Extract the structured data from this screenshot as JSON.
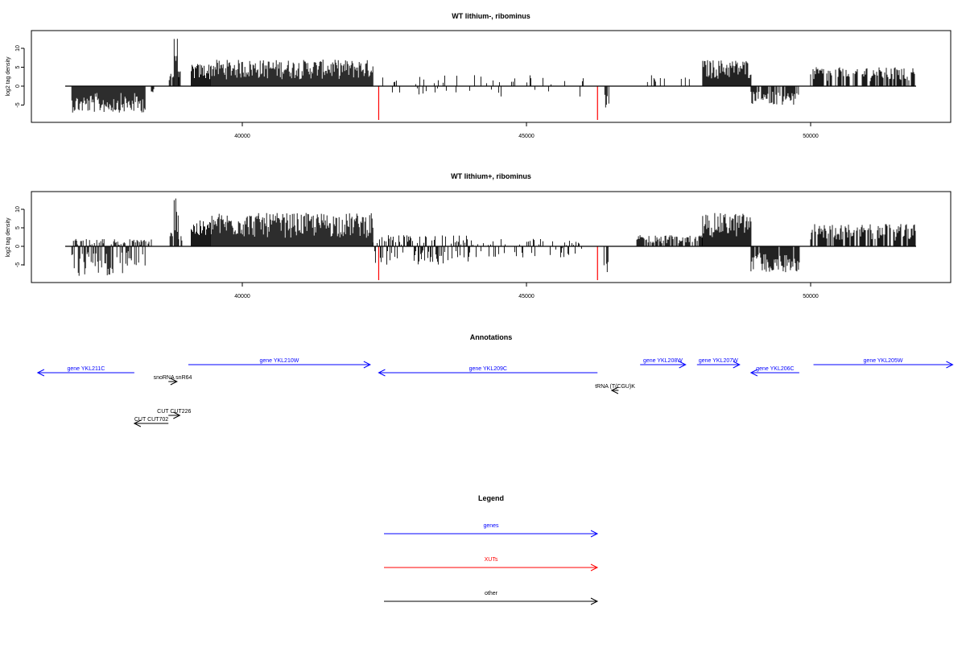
{
  "colors": {
    "gene": "#0000ff",
    "xut": "#ff0000",
    "other": "#000000",
    "bar": "#000000"
  },
  "chart_data": [
    {
      "type": "bar",
      "title": "WT lithium-, ribominus",
      "ylabel": "log2 tag density",
      "xlim": [
        36000,
        52500
      ],
      "ylim": [
        -9.5,
        14.5
      ],
      "xticks": [
        "40000",
        "45000",
        "50000"
      ],
      "yticks": [
        "10",
        "5",
        "0",
        "-5"
      ],
      "red_marks": [
        42400,
        46250
      ],
      "regions": [
        {
          "start": 37000,
          "end": 38300,
          "min": -7,
          "max": 0,
          "density": 1.0
        },
        {
          "start": 38400,
          "end": 38450,
          "min": -2,
          "max": 0,
          "density": 1.0
        },
        {
          "start": 38700,
          "end": 38800,
          "min": 0,
          "max": 4,
          "density": 0.6
        },
        {
          "start": 38800,
          "end": 38880,
          "min": 0,
          "max": 13,
          "density": 1.0
        },
        {
          "start": 38880,
          "end": 38950,
          "min": 0,
          "max": 4,
          "density": 0.5
        },
        {
          "start": 39100,
          "end": 39450,
          "min": 0,
          "max": 6,
          "density": 1.0
        },
        {
          "start": 39450,
          "end": 42300,
          "min": 0,
          "max": 7,
          "density": 1.0
        },
        {
          "start": 42400,
          "end": 46000,
          "min": -3,
          "max": 3,
          "density": 0.15
        },
        {
          "start": 46350,
          "end": 46450,
          "min": -6,
          "max": 0,
          "density": 0.8
        },
        {
          "start": 47100,
          "end": 48100,
          "min": 0,
          "max": 3,
          "density": 0.15
        },
        {
          "start": 48100,
          "end": 48950,
          "min": 0,
          "max": 7,
          "density": 1.0
        },
        {
          "start": 48950,
          "end": 49800,
          "min": -5,
          "max": 0,
          "density": 0.8
        },
        {
          "start": 50000,
          "end": 51850,
          "min": 0,
          "max": 5,
          "density": 0.7
        }
      ]
    },
    {
      "type": "bar",
      "title": "WT lithium+, ribominus",
      "ylabel": "log2 tag density",
      "xlim": [
        36000,
        52500
      ],
      "ylim": [
        -9.5,
        14.5
      ],
      "xticks": [
        "40000",
        "45000",
        "50000"
      ],
      "yticks": [
        "10",
        "5",
        "0",
        "-5"
      ],
      "red_marks": [
        42400,
        46250
      ],
      "regions": [
        {
          "start": 37000,
          "end": 38300,
          "min": -8,
          "max": 2,
          "density": 1.0
        },
        {
          "start": 38300,
          "end": 38400,
          "min": 0,
          "max": 2,
          "density": 0.5
        },
        {
          "start": 38700,
          "end": 38800,
          "min": 0,
          "max": 4,
          "density": 0.6
        },
        {
          "start": 38800,
          "end": 38880,
          "min": 0,
          "max": 14,
          "density": 1.0
        },
        {
          "start": 38880,
          "end": 38950,
          "min": 0,
          "max": 4,
          "density": 0.5
        },
        {
          "start": 39100,
          "end": 39450,
          "min": 0,
          "max": 7,
          "density": 1.0
        },
        {
          "start": 39450,
          "end": 42300,
          "min": 0,
          "max": 9,
          "density": 1.0
        },
        {
          "start": 42300,
          "end": 44000,
          "min": -5,
          "max": 3,
          "density": 0.8
        },
        {
          "start": 44000,
          "end": 46000,
          "min": -3,
          "max": 2,
          "density": 0.35
        },
        {
          "start": 46350,
          "end": 46450,
          "min": -7,
          "max": 0,
          "density": 0.8
        },
        {
          "start": 46900,
          "end": 48100,
          "min": 0,
          "max": 3,
          "density": 0.7
        },
        {
          "start": 48100,
          "end": 48950,
          "min": 0,
          "max": 9,
          "density": 1.0
        },
        {
          "start": 48950,
          "end": 49800,
          "min": -7,
          "max": 0,
          "density": 0.9
        },
        {
          "start": 50000,
          "end": 51850,
          "min": 0,
          "max": 6,
          "density": 0.8
        }
      ]
    }
  ],
  "annotations": {
    "title": "Annotations",
    "features": [
      {
        "label": "gene YKL211C",
        "start": 38100,
        "end": 36400,
        "row": 1,
        "kind": "gene"
      },
      {
        "label": "gene YKL210W",
        "start": 39050,
        "end": 42250,
        "row": 0,
        "kind": "gene"
      },
      {
        "label": "gene YKL209C",
        "start": 46250,
        "end": 42400,
        "row": 1,
        "kind": "gene"
      },
      {
        "label": "gene YKL208W",
        "start": 47000,
        "end": 47800,
        "row": 0,
        "kind": "gene"
      },
      {
        "label": "gene YKL207W",
        "start": 48000,
        "end": 48750,
        "row": 0,
        "kind": "gene"
      },
      {
        "label": "gene YKL206C",
        "start": 49800,
        "end": 48950,
        "row": 1,
        "kind": "gene"
      },
      {
        "label": "gene YKL205W",
        "start": 50050,
        "end": 52500,
        "row": 0,
        "kind": "gene"
      },
      {
        "label": "snoRNA snR64",
        "start": 38700,
        "end": 38850,
        "row": 2,
        "kind": "other"
      },
      {
        "label": "tRNA (T(CGU)K",
        "start": 46620,
        "end": 46500,
        "row": 3,
        "kind": "other"
      },
      {
        "label": "CUT CUT226",
        "start": 38700,
        "end": 38900,
        "row": 4,
        "kind": "other"
      },
      {
        "label": "CUT CUT702",
        "start": 38700,
        "end": 38100,
        "row": 5,
        "kind": "other"
      }
    ]
  },
  "legend": {
    "title": "Legend",
    "items": [
      {
        "label": "genes",
        "kind": "gene"
      },
      {
        "label": "XUTs",
        "kind": "xut"
      },
      {
        "label": "other",
        "kind": "other"
      }
    ]
  }
}
